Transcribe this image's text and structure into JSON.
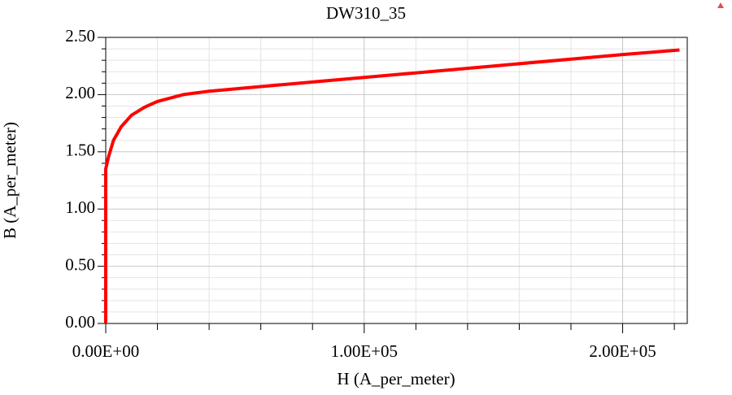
{
  "chart_data": {
    "type": "line",
    "title": "DW310_35",
    "x_label": "H (A_per_meter)",
    "y_label": "B (A_per_meter)",
    "series": [
      {
        "name": "DW310_35",
        "color": "#ff0000",
        "x": [
          0,
          0,
          1000,
          3000,
          6000,
          10000,
          15000,
          20000,
          30000,
          40000,
          60000,
          80000,
          100000,
          150000,
          200000,
          222000
        ],
        "values": [
          0,
          1.35,
          1.45,
          1.6,
          1.72,
          1.82,
          1.89,
          1.94,
          2.0,
          2.03,
          2.07,
          2.11,
          2.15,
          2.25,
          2.35,
          2.39
        ]
      }
    ],
    "xlim": [
      0,
      225000
    ],
    "ylim": [
      0,
      2.5
    ],
    "xticks": [
      {
        "value": 0,
        "label": "0.00E+00"
      },
      {
        "value": 100000,
        "label": "1.00E+05"
      },
      {
        "value": 200000,
        "label": "2.00E+05"
      }
    ],
    "xminorticks": [
      20000,
      40000,
      60000,
      80000,
      120000,
      140000,
      160000,
      180000,
      220000
    ],
    "yticks": [
      {
        "value": 0,
        "label": "0.00"
      },
      {
        "value": 0.5,
        "label": "0.50"
      },
      {
        "value": 1,
        "label": "1.00"
      },
      {
        "value": 1.5,
        "label": "1.50"
      },
      {
        "value": 2,
        "label": "2.00"
      },
      {
        "value": 2.5,
        "label": "2.50"
      }
    ],
    "yminorticks": [
      0.1,
      0.2,
      0.3,
      0.4,
      0.6,
      0.7,
      0.8,
      0.9,
      1.1,
      1.2,
      1.3,
      1.4,
      1.6,
      1.7,
      1.8,
      1.9,
      2.1,
      2.2,
      2.3,
      2.4
    ],
    "grid": true
  }
}
